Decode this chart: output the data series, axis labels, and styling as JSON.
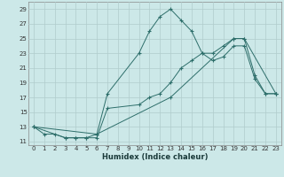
{
  "title": "",
  "xlabel": "Humidex (Indice chaleur)",
  "background_color": "#cce8e8",
  "grid_color": "#b0cccc",
  "line_color": "#2d6e6a",
  "xlim": [
    -0.5,
    23.5
  ],
  "ylim": [
    10.5,
    30.0
  ],
  "xticks": [
    0,
    1,
    2,
    3,
    4,
    5,
    6,
    7,
    8,
    9,
    10,
    11,
    12,
    13,
    14,
    15,
    16,
    17,
    18,
    19,
    20,
    21,
    22,
    23
  ],
  "yticks": [
    11,
    13,
    15,
    17,
    19,
    21,
    23,
    25,
    27,
    29
  ],
  "line1_x": [
    0,
    1,
    2,
    3,
    4,
    5,
    6,
    7,
    10,
    11,
    12,
    13,
    14,
    15,
    16,
    17,
    18,
    19,
    20,
    21,
    22,
    23
  ],
  "line1_y": [
    13,
    12,
    12,
    11.5,
    11.5,
    11.5,
    12,
    17.5,
    23,
    26,
    28,
    29,
    27.5,
    26,
    23,
    22,
    22.5,
    24,
    24,
    19.5,
    17.5,
    17.5
  ],
  "line2_x": [
    0,
    3,
    4,
    5,
    6,
    7,
    10,
    11,
    12,
    13,
    14,
    15,
    16,
    17,
    18,
    19,
    20,
    21,
    22,
    23
  ],
  "line2_y": [
    13,
    11.5,
    11.5,
    11.5,
    11.5,
    15.5,
    16,
    17,
    17.5,
    19,
    21,
    22,
    23,
    23,
    24,
    25,
    25,
    20,
    17.5,
    17.5
  ],
  "line3_x": [
    0,
    6,
    13,
    19,
    20,
    23
  ],
  "line3_y": [
    13,
    12,
    17,
    25,
    25,
    17.5
  ]
}
